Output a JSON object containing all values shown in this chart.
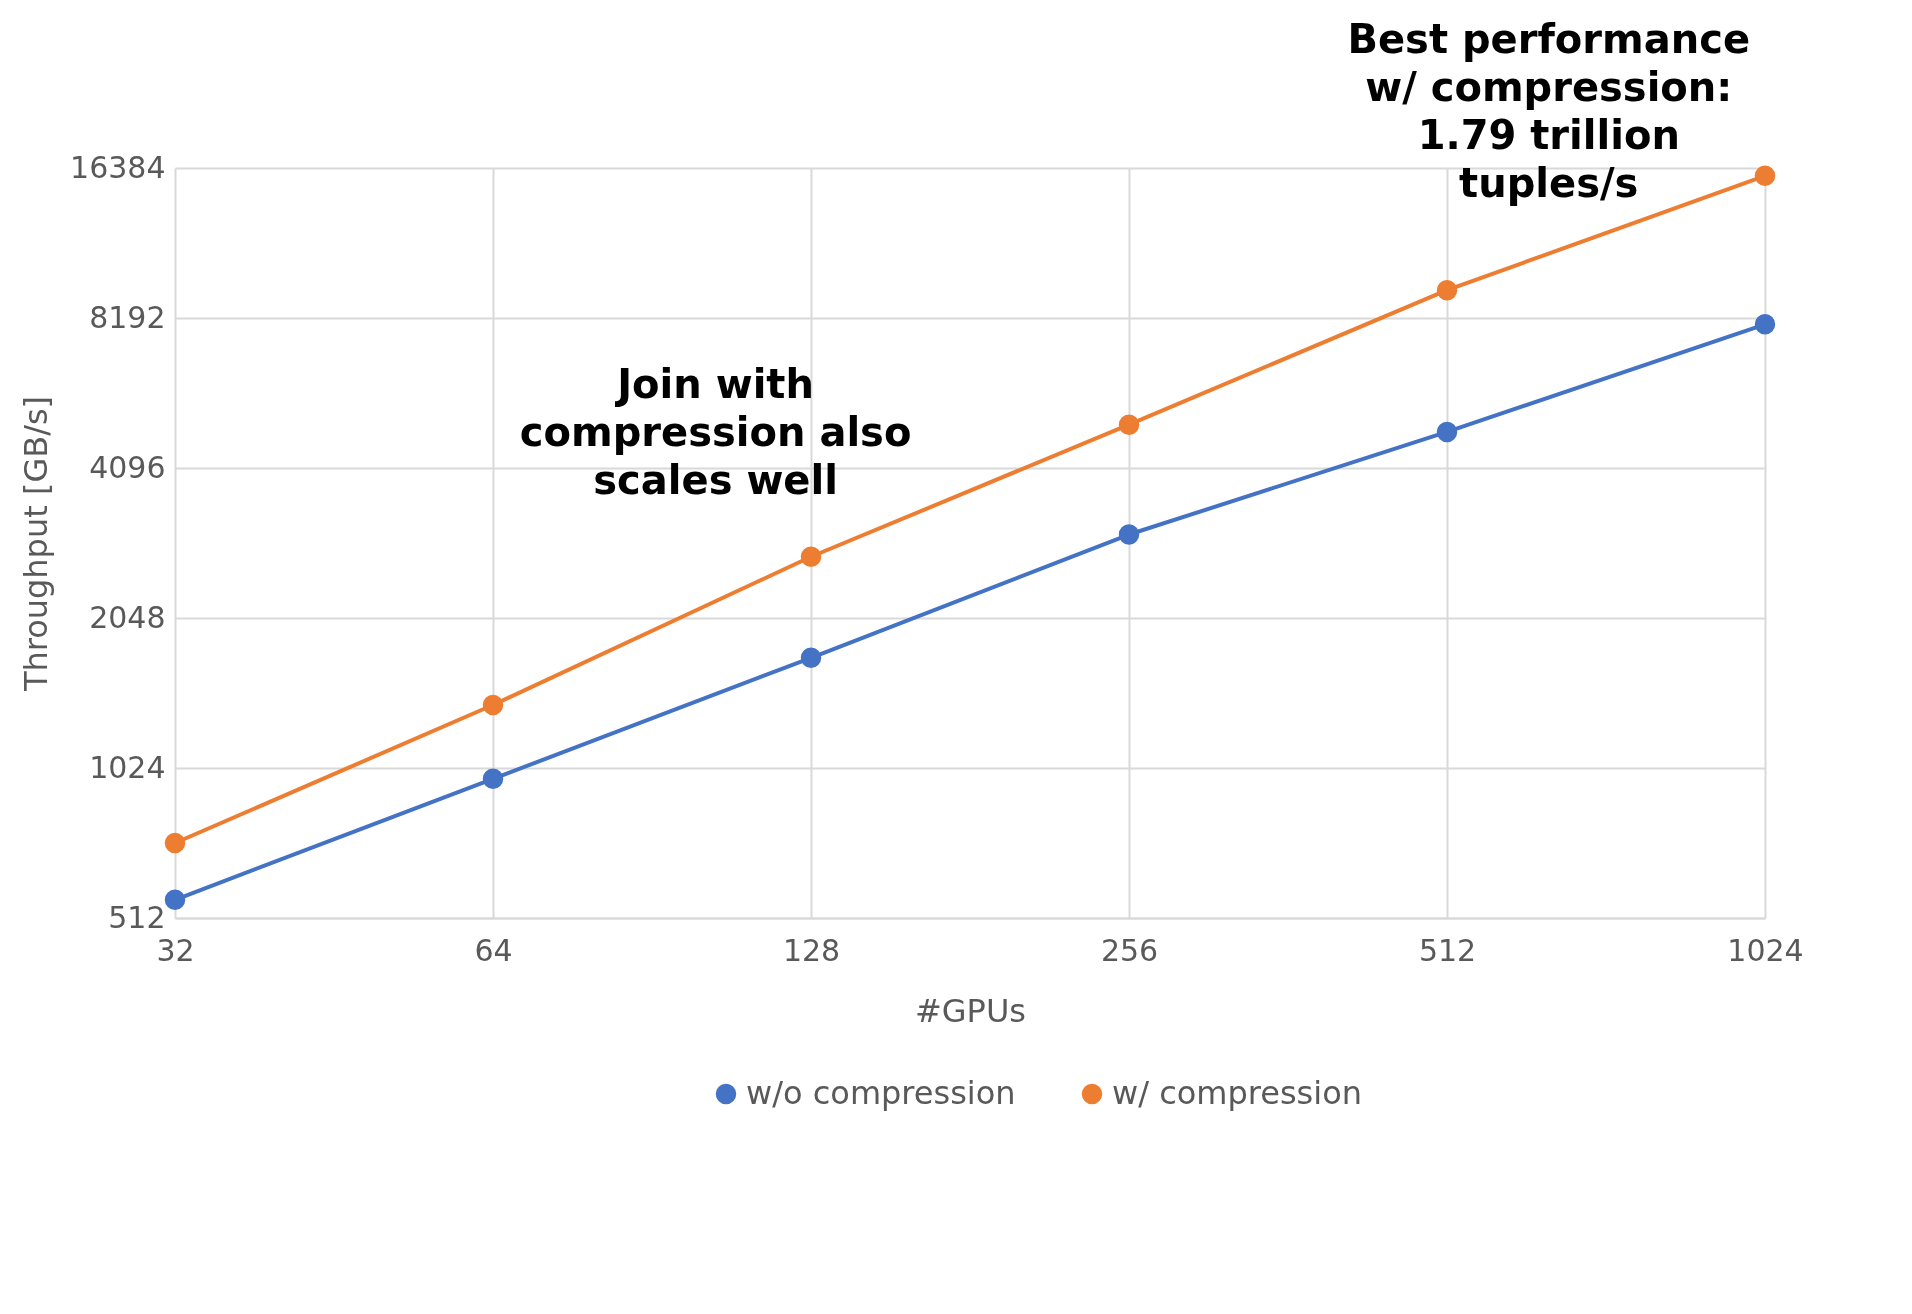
{
  "chart_data": {
    "type": "line",
    "xlabel": "#GPUs",
    "ylabel": "Throughput [GB/s]",
    "x": [
      32,
      64,
      128,
      256,
      512,
      1024
    ],
    "series": [
      {
        "name": "w/o compression",
        "color": "#4472c4",
        "values": [
          557,
          974,
          1704,
          3012,
          4840,
          7955
        ]
      },
      {
        "name": "w/ compression",
        "color": "#ed7d31",
        "values": [
          724,
          1370,
          2718,
          5004,
          9317,
          15800
        ]
      }
    ],
    "log": "xy",
    "xlim": [
      32,
      1024
    ],
    "xticks": [
      32,
      64,
      128,
      256,
      512,
      1024
    ],
    "ylim": [
      512,
      16384
    ],
    "yticks": [
      512,
      1024,
      2048,
      4096,
      8192,
      16384
    ],
    "grid": true,
    "legend": "bottom",
    "marker": "circle",
    "line_style": "solid",
    "annotations": [
      "Join with\ncompression also\nscales well",
      "Best performance\nw/ compression:\n1.79 trillion\ntuples/s"
    ]
  }
}
